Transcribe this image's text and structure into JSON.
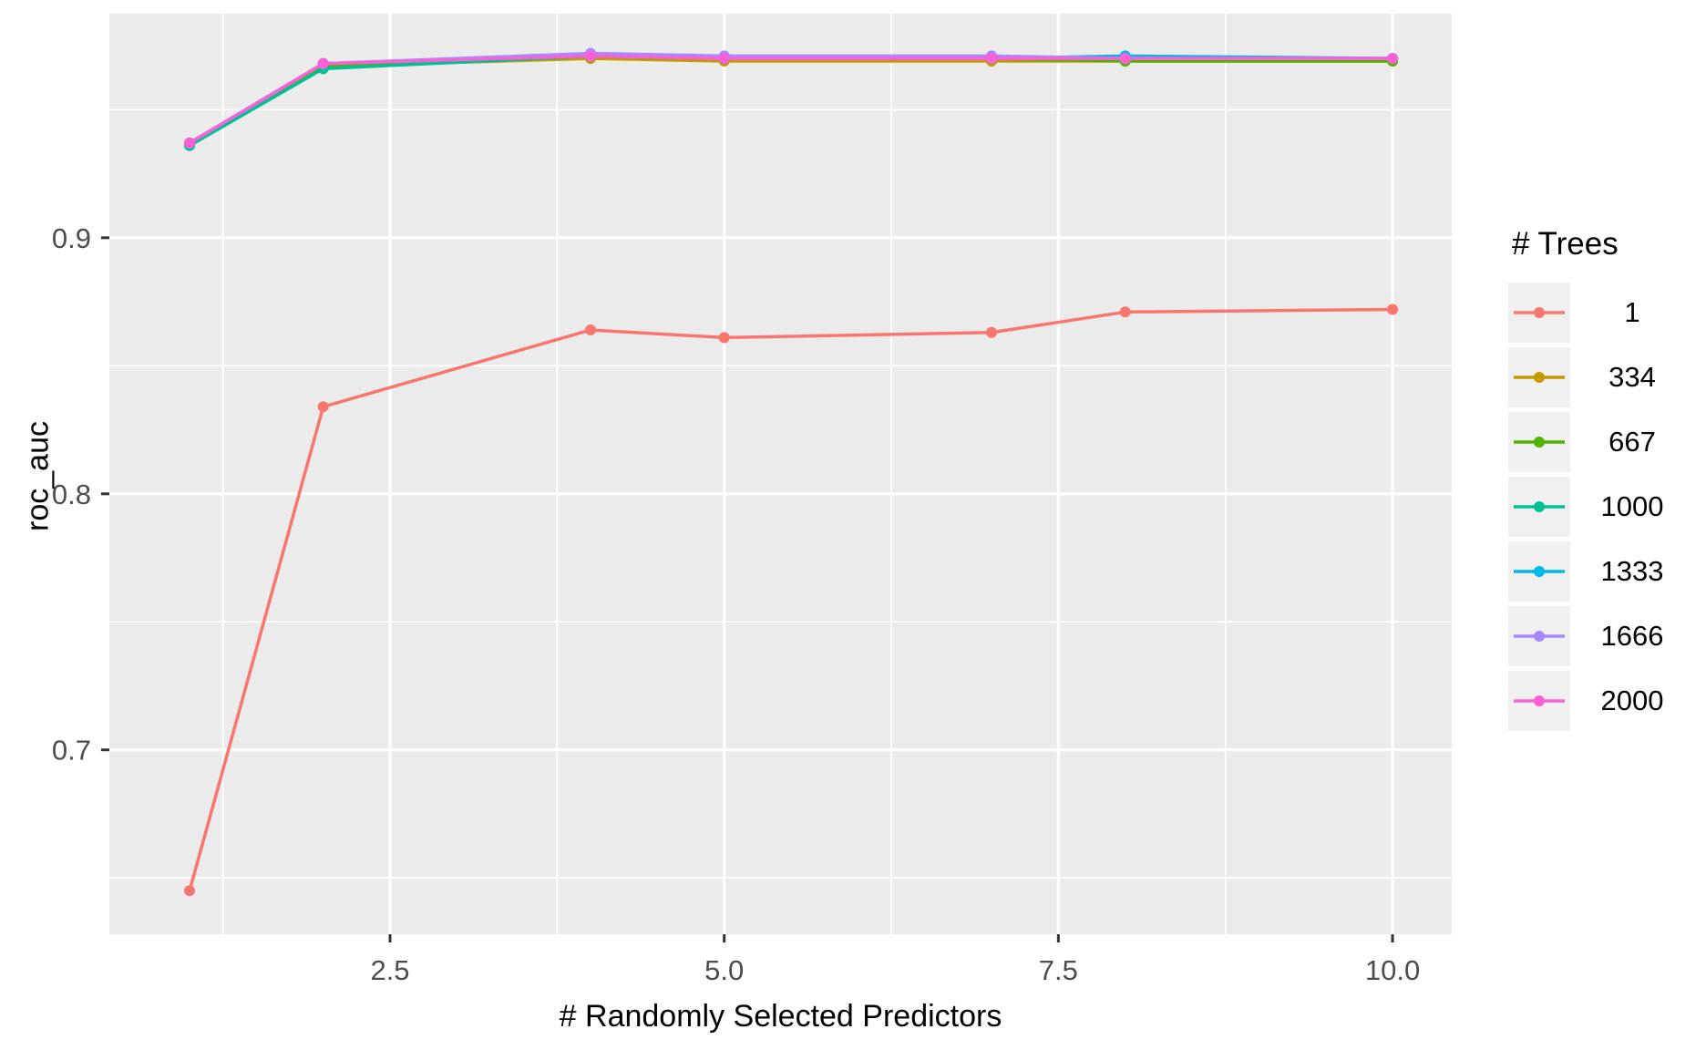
{
  "chart_data": {
    "type": "line",
    "title": "",
    "xlabel": "# Randomly Selected Predictors",
    "ylabel": "roc_auc",
    "legend_title": "# Trees",
    "legend_position": "right",
    "grid": true,
    "x": [
      1,
      2,
      4,
      5,
      7,
      8,
      10
    ],
    "series": [
      {
        "name": "1",
        "color": "#F8766D",
        "values": [
          0.645,
          0.834,
          0.864,
          0.861,
          0.863,
          0.871,
          0.872
        ]
      },
      {
        "name": "334",
        "color": "#C49A00",
        "values": [
          0.936,
          0.967,
          0.97,
          0.969,
          0.969,
          0.969,
          0.969
        ]
      },
      {
        "name": "667",
        "color": "#53B400",
        "values": [
          0.936,
          0.967,
          0.971,
          0.97,
          0.97,
          0.969,
          0.969
        ]
      },
      {
        "name": "1000",
        "color": "#00C094",
        "values": [
          0.936,
          0.966,
          0.971,
          0.97,
          0.97,
          0.97,
          0.97
        ]
      },
      {
        "name": "1333",
        "color": "#00B6EB",
        "values": [
          0.937,
          0.968,
          0.971,
          0.97,
          0.97,
          0.971,
          0.97
        ]
      },
      {
        "name": "1666",
        "color": "#A58AFF",
        "values": [
          0.937,
          0.968,
          0.972,
          0.971,
          0.971,
          0.97,
          0.97
        ]
      },
      {
        "name": "2000",
        "color": "#FB61D7",
        "values": [
          0.937,
          0.968,
          0.971,
          0.97,
          0.97,
          0.97,
          0.97
        ]
      }
    ],
    "x_ticks": [
      2.5,
      5.0,
      7.5,
      10.0
    ],
    "x_tick_labels": [
      "2.5",
      "5.0",
      "7.5",
      "10.0"
    ],
    "x_minor_ticks": [
      1.25,
      3.75,
      6.25,
      8.75
    ],
    "y_ticks": [
      0.7,
      0.8,
      0.9
    ],
    "y_tick_labels": [
      "0.7",
      "0.8",
      "0.9"
    ],
    "y_minor_ticks": [
      0.65,
      0.75,
      0.85,
      0.95
    ],
    "xlim": [
      0.4,
      10.443
    ],
    "ylim": [
      0.628,
      0.9875
    ]
  },
  "theme": {
    "panel_bg": "#EBEBEB",
    "grid_color": "#FFFFFF",
    "tick_mark_color": "#333333",
    "tick_label_color": "#4D4D4D",
    "text_color": "#000000",
    "legend_key_bg": "#F0F0F0"
  }
}
